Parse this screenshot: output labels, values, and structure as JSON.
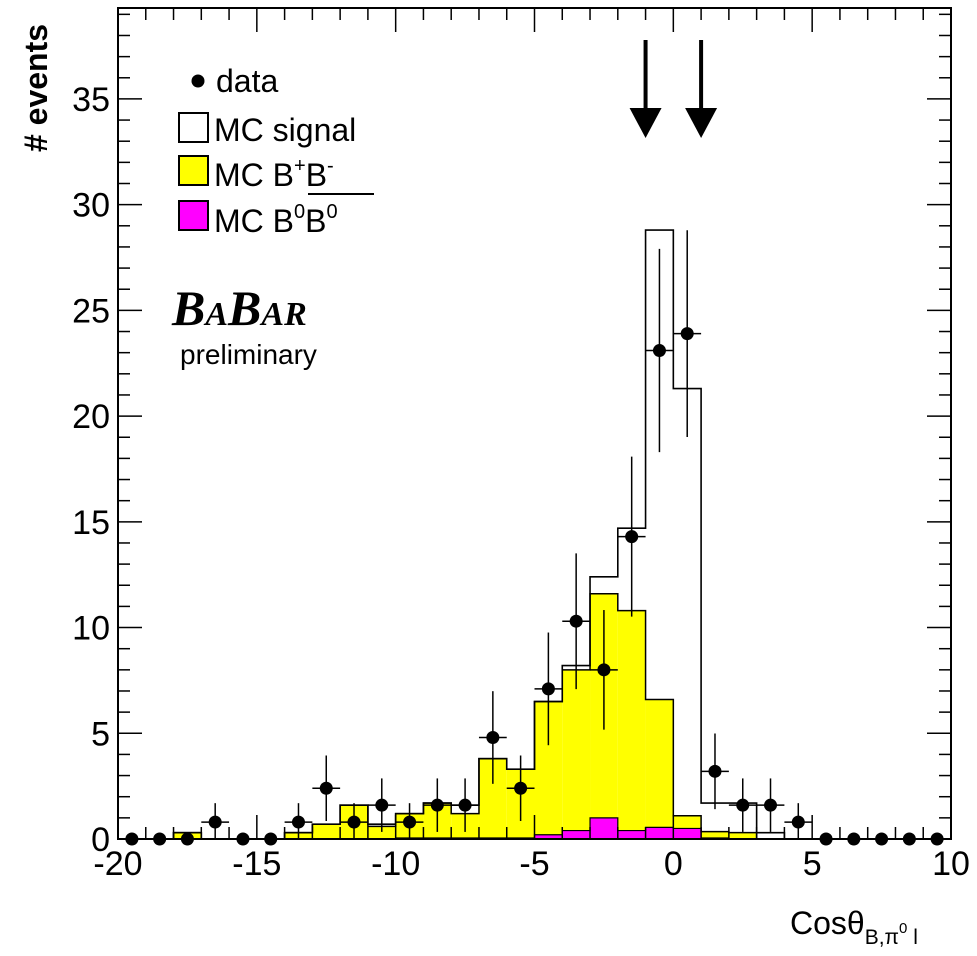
{
  "chart_data": {
    "type": "histogram",
    "xlabel_main": "Cosθ",
    "xlabel_sub": "B,π",
    "xlabel_sup": "0",
    "xlabel_tail": " l",
    "ylabel": "# events",
    "xlim": [
      -20,
      10
    ],
    "ylim": [
      0,
      39.3
    ],
    "x_ticks": [
      "-20",
      "-15",
      "-10",
      "-5",
      "0",
      "5",
      "10"
    ],
    "y_ticks": [
      "0",
      "5",
      "10",
      "15",
      "20",
      "25",
      "30",
      "35"
    ],
    "bin_edges": [
      -20,
      -19,
      -18,
      -17,
      -16,
      -15,
      -14,
      -13,
      -12,
      -11,
      -10,
      -9,
      -8,
      -7,
      -6,
      -5,
      -4,
      -3,
      -2,
      -1,
      0,
      1,
      2,
      3,
      4,
      5,
      6,
      7,
      8,
      9,
      10
    ],
    "series": [
      {
        "name": "MC signal",
        "color": "#ffffff",
        "values": [
          0,
          0,
          0.3,
          0,
          0,
          0,
          0.3,
          0.7,
          1.6,
          0.7,
          1.2,
          1.7,
          1.6,
          3.8,
          3.3,
          6.5,
          8.2,
          12.4,
          14.7,
          28.8,
          21.3,
          1.7,
          1.7,
          0.3,
          0,
          0,
          0,
          0,
          0,
          0
        ]
      },
      {
        "name": "MC B+B-",
        "color": "#ffff00",
        "values": [
          0,
          0,
          0.3,
          0,
          0,
          0,
          0.3,
          0.7,
          1.6,
          0.6,
          1.2,
          1.7,
          1.2,
          3.8,
          3.3,
          6.5,
          8.0,
          11.6,
          10.8,
          6.6,
          1.1,
          0.35,
          0.3,
          0,
          0,
          0,
          0,
          0,
          0,
          0
        ]
      },
      {
        "name": "MC B0B0bar",
        "color": "#ff00ff",
        "values": [
          0,
          0,
          0,
          0,
          0,
          0,
          0,
          0,
          0,
          0,
          0.05,
          0.05,
          0.05,
          0.05,
          0.05,
          0.2,
          0.4,
          1.0,
          0.4,
          0.55,
          0.5,
          0.05,
          0,
          0,
          0,
          0,
          0,
          0,
          0,
          0
        ]
      },
      {
        "name": "data",
        "color": "#000000",
        "values": [
          0,
          0,
          0,
          0.8,
          0,
          0,
          0.8,
          2.4,
          0.8,
          1.6,
          0.8,
          1.6,
          1.6,
          4.8,
          2.4,
          7.1,
          10.3,
          8.0,
          14.3,
          23.1,
          23.9,
          3.2,
          1.6,
          1.6,
          0.8,
          0,
          0,
          0,
          0,
          0
        ]
      }
    ],
    "arrows_x": [
      -1.0,
      1.0
    ],
    "legend": {
      "data": "data",
      "signal": "MC signal",
      "bpbm": {
        "base": "MC B",
        "sup1": "+",
        "base2": "B",
        "sup2": "-"
      },
      "b0b0": {
        "base": "MC B",
        "sup1": "0",
        "base2": "B",
        "sup2": "0"
      }
    },
    "logo": {
      "B1": "B",
      "A1": "A",
      "B2": "B",
      "A2": "AR"
    },
    "preliminary": "preliminary",
    "legend_placement": "top-left",
    "grid": false
  }
}
